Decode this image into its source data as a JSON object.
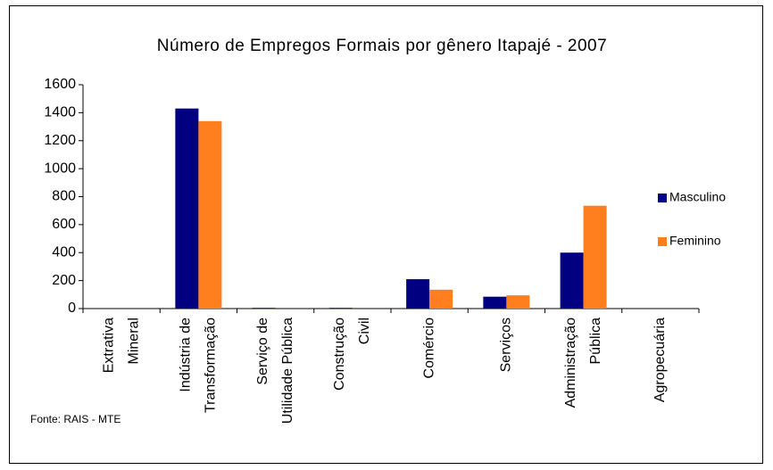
{
  "chart_data": {
    "type": "bar",
    "title": "Número de Empregos Formais por gênero Itapajé - 2007",
    "categories": [
      [
        "Extrativa",
        "Mineral"
      ],
      [
        "Indústria de",
        "Transformação"
      ],
      [
        "Serviço de",
        "Utilidade Pública"
      ],
      [
        "Construção",
        "Civil"
      ],
      [
        "Comércio"
      ],
      [
        "Serviços"
      ],
      [
        "Administração",
        "Pública"
      ],
      [
        "Agropecuária"
      ]
    ],
    "series": [
      {
        "name": "Masculino",
        "color": "#000080",
        "values": [
          0,
          1430,
          5,
          5,
          210,
          85,
          400,
          0
        ]
      },
      {
        "name": "Feminino",
        "color": "#ff7f1f",
        "values": [
          0,
          1340,
          0,
          0,
          135,
          95,
          735,
          0
        ]
      }
    ],
    "ylim": [
      0,
      1600
    ],
    "yticks": [
      0,
      200,
      400,
      600,
      800,
      1000,
      1200,
      1400,
      1600
    ],
    "legend": "right",
    "source": "Fonte: RAIS - MTE"
  }
}
